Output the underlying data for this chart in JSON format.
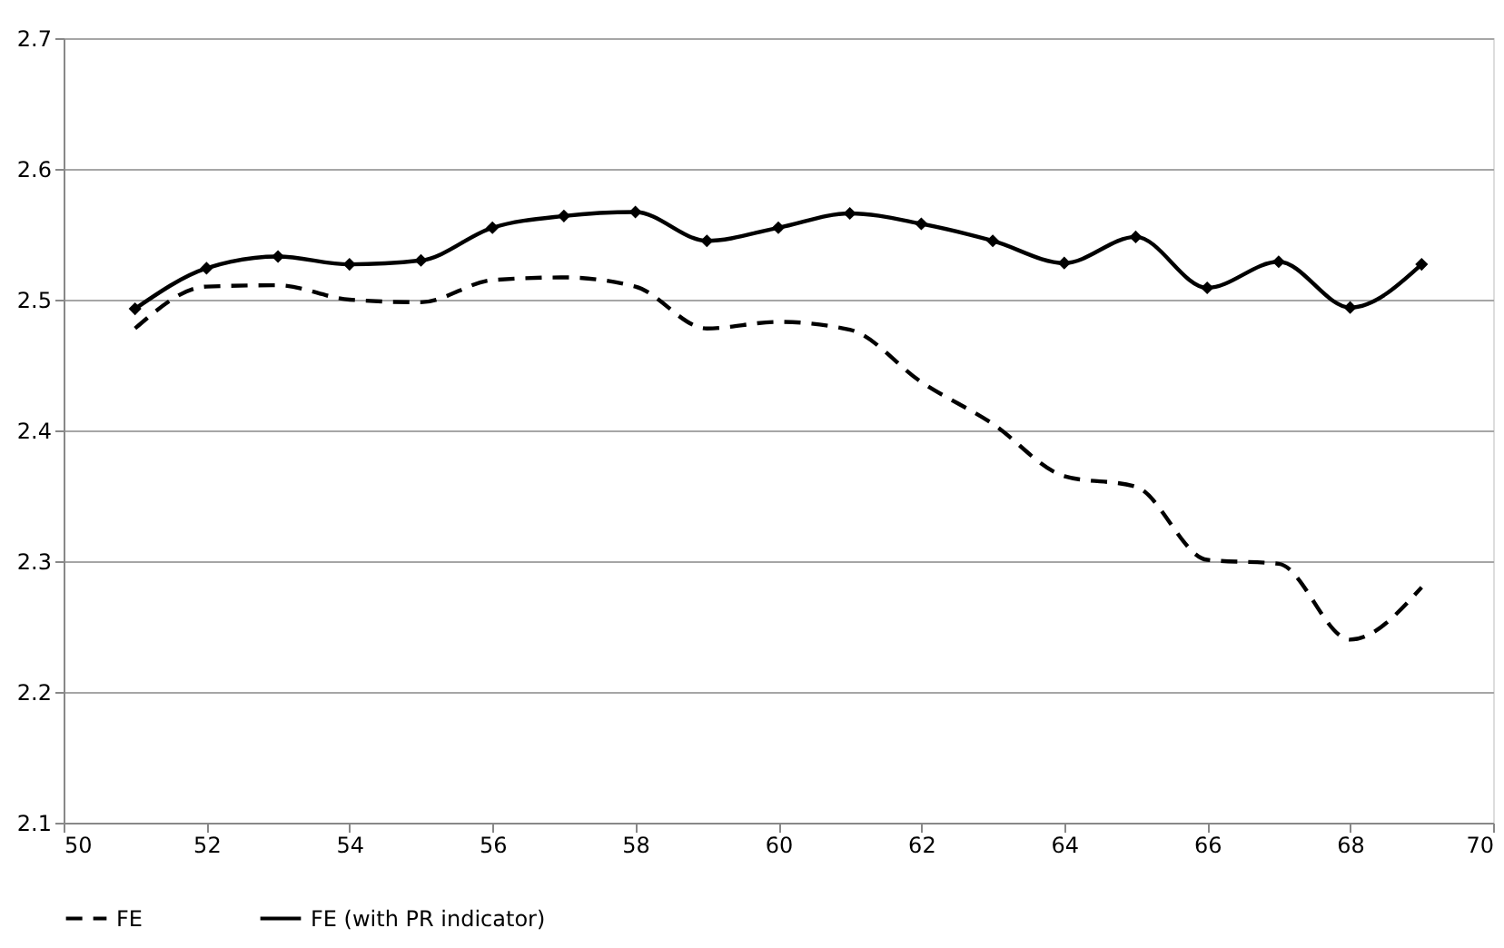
{
  "chart_data": {
    "type": "line",
    "x": [
      51,
      52,
      53,
      54,
      55,
      56,
      57,
      58,
      59,
      60,
      61,
      62,
      63,
      64,
      65,
      66,
      67,
      68,
      69
    ],
    "series": [
      {
        "name": "FE",
        "color": "#000000",
        "line_style": "dashed",
        "marker": "none",
        "values": [
          2.478,
          2.51,
          2.511,
          2.5,
          2.498,
          2.515,
          2.517,
          2.51,
          2.478,
          2.483,
          2.477,
          2.437,
          2.405,
          2.365,
          2.357,
          2.301,
          2.298,
          2.24,
          2.28
        ]
      },
      {
        "name": "FE (with PR indicator)",
        "color": "#000000",
        "line_style": "solid",
        "marker": "diamond",
        "values": [
          2.493,
          2.524,
          2.533,
          2.527,
          2.53,
          2.555,
          2.564,
          2.567,
          2.545,
          2.555,
          2.566,
          2.558,
          2.545,
          2.528,
          2.548,
          2.509,
          2.529,
          2.494,
          2.527
        ]
      }
    ],
    "xlim": [
      50,
      70
    ],
    "xticks": [
      50,
      52,
      54,
      56,
      58,
      60,
      62,
      64,
      66,
      68,
      70
    ],
    "ylim": [
      2.1,
      2.7
    ],
    "yticks": [
      2.1,
      2.2,
      2.3,
      2.4,
      2.5,
      2.6,
      2.7
    ],
    "grid": "y",
    "legend": "bottom"
  }
}
